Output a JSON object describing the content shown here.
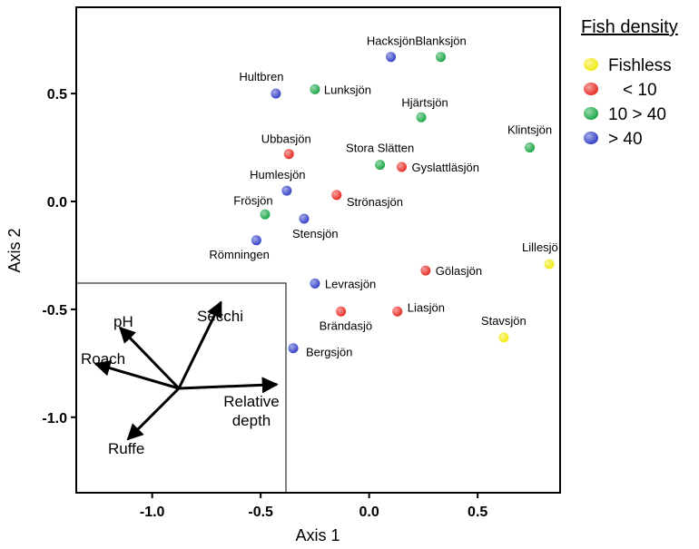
{
  "chart_data": {
    "type": "scatter",
    "xlabel": "Axis 1",
    "ylabel": "Axis 2",
    "xlim": [
      -1.35,
      0.88
    ],
    "ylim": [
      -1.35,
      0.9
    ],
    "xticks": [
      {
        "value": -1.0,
        "label": "-1.0"
      },
      {
        "value": -0.5,
        "label": "-0.5"
      },
      {
        "value": 0.0,
        "label": "0.0"
      },
      {
        "value": 0.5,
        "label": "0.5"
      }
    ],
    "yticks": [
      {
        "value": 0.5,
        "label": "0.5"
      },
      {
        "value": 0.0,
        "label": "0.0"
      },
      {
        "value": -0.5,
        "label": "-0.5"
      },
      {
        "value": -1.0,
        "label": "-1.0"
      }
    ],
    "grid": false,
    "legend": {
      "title": "Fish density",
      "position": "outside-top-right",
      "entries": [
        {
          "label": "Fishless",
          "color": "#f2ea17"
        },
        {
          "label": "< 10",
          "color": "#e8302a"
        },
        {
          "label": "10 > 40",
          "color": "#1fa84a"
        },
        {
          "label": "> 40",
          "color": "#3a45c8"
        }
      ]
    },
    "points": [
      {
        "name": "Hacksjön",
        "x": 0.1,
        "y": 0.67,
        "group": "> 40"
      },
      {
        "name": "Blanksjön",
        "x": 0.33,
        "y": 0.67,
        "group": "10 > 40"
      },
      {
        "name": "Hultbren",
        "x": -0.43,
        "y": 0.5,
        "group": "> 40"
      },
      {
        "name": "Lunksjön",
        "x": -0.25,
        "y": 0.52,
        "group": "10 > 40"
      },
      {
        "name": "Hjärtsjön",
        "x": 0.24,
        "y": 0.39,
        "group": "10 > 40"
      },
      {
        "name": "Klintsjön",
        "x": 0.74,
        "y": 0.25,
        "group": "10 > 40"
      },
      {
        "name": "Ubbasjön",
        "x": -0.37,
        "y": 0.22,
        "group": "< 10"
      },
      {
        "name": "Stora Slätten",
        "x": 0.05,
        "y": 0.17,
        "group": "10 > 40"
      },
      {
        "name": "Gyslattläsjön",
        "x": 0.15,
        "y": 0.16,
        "group": "< 10"
      },
      {
        "name": "Humlesjön",
        "x": -0.38,
        "y": 0.05,
        "group": "> 40"
      },
      {
        "name": "Strönasjön",
        "x": -0.15,
        "y": 0.03,
        "group": "< 10"
      },
      {
        "name": "Frösjön",
        "x": -0.48,
        "y": -0.06,
        "group": "10 > 40"
      },
      {
        "name": "Stensjön",
        "x": -0.3,
        "y": -0.08,
        "group": "> 40"
      },
      {
        "name": "Römningen",
        "x": -0.52,
        "y": -0.18,
        "group": "> 40"
      },
      {
        "name": "Lillesjö",
        "x": 0.83,
        "y": -0.29,
        "group": "Fishless"
      },
      {
        "name": "Gölasjön",
        "x": 0.26,
        "y": -0.32,
        "group": "< 10"
      },
      {
        "name": "Levrasjön",
        "x": -0.25,
        "y": -0.38,
        "group": "> 40"
      },
      {
        "name": "Liasjön",
        "x": 0.13,
        "y": -0.51,
        "group": "< 10"
      },
      {
        "name": "Brändasjö",
        "x": -0.13,
        "y": -0.51,
        "group": "< 10"
      },
      {
        "name": "Stavsjön",
        "x": 0.62,
        "y": -0.63,
        "group": "Fishless"
      },
      {
        "name": "Bergsjön",
        "x": -0.35,
        "y": -0.68,
        "group": "> 40"
      }
    ],
    "inset_vectors": [
      {
        "name": "pH",
        "dx": -0.6,
        "dy": 0.62
      },
      {
        "name": "Secchi",
        "dx": 0.43,
        "dy": 0.88
      },
      {
        "name": "Roach",
        "dx": -0.85,
        "dy": 0.25
      },
      {
        "name": "Relative depth",
        "dx": 1.0,
        "dy": 0.04
      },
      {
        "name": "Ruffe",
        "dx": -0.52,
        "dy": -0.52
      }
    ]
  }
}
